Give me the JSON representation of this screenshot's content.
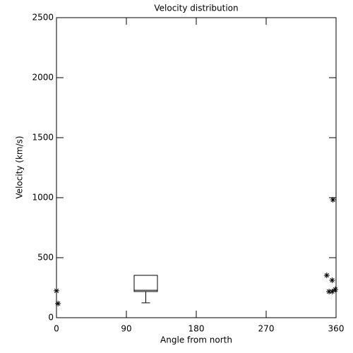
{
  "chart_data": {
    "type": "box",
    "title": "Velocity distribution",
    "x_label": "Angle from north",
    "y_label": "Velocity (km/s)",
    "xlim": [
      0,
      360
    ],
    "xticks": [
      0,
      90,
      180,
      270,
      360
    ],
    "ylim": [
      0,
      2500
    ],
    "yticks": [
      0,
      500,
      1000,
      1500,
      2000,
      2500
    ],
    "color": "#000000",
    "boxes": [
      {
        "x0": 100,
        "x1": 130,
        "x": 115,
        "low": 124,
        "q1": 218,
        "median": 229,
        "q3": 353,
        "high": 353
      }
    ],
    "outliers": {
      "x": [
        0,
        2,
        348,
        355,
        351,
        355,
        359,
        356
      ],
      "values": [
        224,
        118,
        353,
        312,
        218,
        218,
        235,
        982
      ]
    }
  }
}
